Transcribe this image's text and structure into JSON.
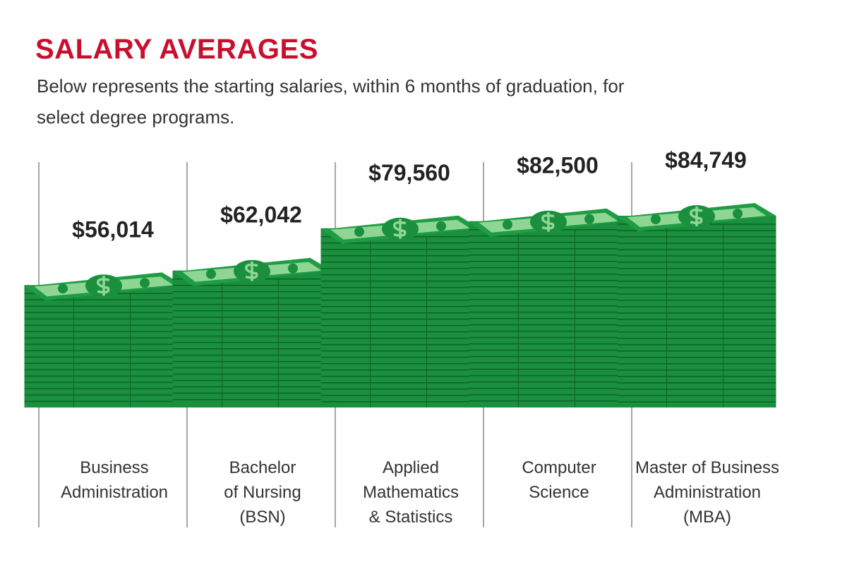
{
  "chart_data": {
    "type": "money-stack",
    "title": "SALARY AVERAGES",
    "subtitle": "Below represents the starting salaries, within 6 months of graduation, for select degree programs.",
    "categories": [
      [
        "Business",
        "Administration"
      ],
      [
        "Bachelor",
        "of Nursing",
        "(BSN)"
      ],
      [
        "Applied",
        "Mathematics",
        "& Statistics"
      ],
      [
        "Computer",
        "Science"
      ],
      [
        "Master of Business",
        "Administration",
        "(MBA)"
      ]
    ],
    "values": [
      56014,
      62042,
      79560,
      82500,
      84749
    ],
    "value_labels": [
      "$56,014",
      "$62,042",
      "$79,560",
      "$82,500",
      "$84,749"
    ],
    "color": "#1a8f3d"
  }
}
